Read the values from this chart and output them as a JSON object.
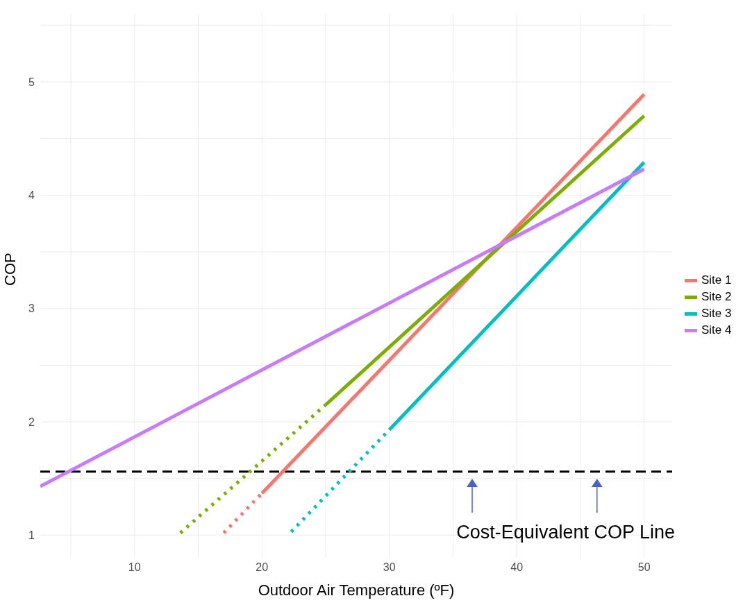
{
  "chart_data": {
    "type": "line",
    "xlabel": "Outdoor Air Temperature (ºF)",
    "ylabel": "COP",
    "xlim": [
      2.6,
      52.2
    ],
    "xticks": [
      {
        "value": 5,
        "label": null
      },
      10,
      {
        "value": 15,
        "label": null
      },
      20,
      {
        "value": 25,
        "label": null
      },
      30,
      {
        "value": 35,
        "label": null
      },
      40,
      {
        "value": 45,
        "label": null
      },
      50
    ],
    "ylim": [
      0.8,
      5.6
    ],
    "yticks": [
      1,
      {
        "value": 1.5,
        "label": null
      },
      2,
      {
        "value": 2.5,
        "label": null
      },
      3,
      {
        "value": 3.5,
        "label": null
      },
      4,
      {
        "value": 4.5,
        "label": null
      },
      5,
      {
        "value": 5.5,
        "label": null
      }
    ],
    "grid": true,
    "legend": "right",
    "marker": "none",
    "series": [
      {
        "name": "Site 1",
        "color": "#f8766d",
        "x": [
          20,
          50
        ],
        "values": [
          1.37,
          4.89
        ],
        "line_style": "solid"
      },
      {
        "color": "#f8766d",
        "x": [
          17,
          20
        ],
        "values": [
          1.02,
          1.37
        ],
        "line_style": "dotted"
      },
      {
        "name": "Site 2",
        "color": "#7cae00",
        "x": [
          25,
          50
        ],
        "values": [
          2.15,
          4.7
        ],
        "line_style": "solid"
      },
      {
        "color": "#7cae00",
        "x": [
          13.6,
          25
        ],
        "values": [
          1.02,
          2.15
        ],
        "line_style": "dotted"
      },
      {
        "name": "Site 3",
        "color": "#00bfc4",
        "x": [
          30,
          50
        ],
        "values": [
          1.93,
          4.29
        ],
        "line_style": "solid"
      },
      {
        "color": "#00bfc4",
        "x": [
          22.3,
          30
        ],
        "values": [
          1.03,
          1.93
        ],
        "line_style": "dotted"
      },
      {
        "name": "Site 4",
        "color": "#c77cff",
        "x": [
          2.6,
          50
        ],
        "values": [
          1.43,
          4.23
        ],
        "line_style": "solid"
      }
    ],
    "ref_lines": [
      {
        "axis": "y",
        "value": 1.56,
        "color": "#000000",
        "line_style": "dashed"
      }
    ],
    "annotations": [
      "Cost-Equivalent COP Line"
    ]
  }
}
